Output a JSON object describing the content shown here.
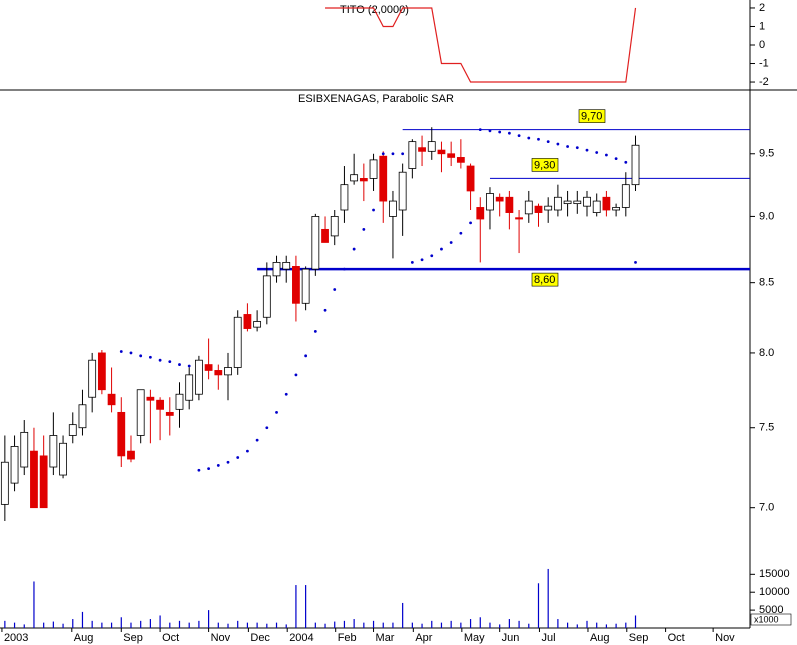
{
  "chart_data": [
    {
      "type": "line",
      "title": "TITO (2,0000)",
      "color": "#e02020",
      "values": [
        null,
        null,
        null,
        null,
        null,
        null,
        null,
        null,
        null,
        null,
        null,
        null,
        null,
        null,
        null,
        null,
        null,
        null,
        null,
        null,
        null,
        null,
        null,
        null,
        null,
        null,
        null,
        null,
        null,
        null,
        null,
        null,
        null,
        2,
        2,
        2,
        2,
        2,
        2,
        1,
        1,
        2,
        2,
        2,
        2,
        -1,
        -1,
        -1,
        -2,
        -2,
        -2,
        -2,
        -2,
        -2,
        -2,
        -2,
        -2,
        -2,
        -2,
        -2,
        -2,
        -2,
        -2,
        -2,
        -2,
        2
      ],
      "xlim": [
        -0.5,
        76.8
      ],
      "ylim": [
        -2.43,
        2.43
      ],
      "yticks": [
        2,
        1,
        0,
        -1,
        -2
      ]
    },
    {
      "type": "candlestick",
      "title": "ESIBXENAGAS, Parabolic SAR",
      "log_scale": true,
      "up_color": "#ffffff",
      "down_color": "#e00000",
      "open": [
        7.02,
        7.15,
        7.25,
        7.35,
        7.32,
        7.25,
        7.2,
        7.45,
        7.5,
        7.7,
        8.0,
        7.72,
        7.6,
        7.35,
        7.45,
        7.7,
        7.68,
        7.6,
        7.62,
        7.68,
        7.72,
        7.92,
        7.88,
        7.85,
        7.9,
        8.27,
        8.18,
        8.25,
        8.55,
        8.6,
        8.62,
        8.35,
        8.6,
        8.9,
        8.85,
        9.05,
        9.28,
        9.3,
        9.3,
        9.48,
        9.0,
        9.05,
        9.38,
        9.55,
        9.52,
        9.53,
        9.5,
        9.47,
        9.4,
        9.07,
        9.05,
        9.15,
        9.15,
        8.99,
        9.02,
        9.08,
        9.05,
        9.05,
        9.1,
        9.1,
        9.08,
        9.03,
        9.15,
        9.05,
        9.07,
        9.25
      ],
      "high": [
        7.45,
        7.45,
        7.55,
        7.5,
        7.45,
        7.6,
        7.45,
        7.6,
        7.75,
        8.0,
        8.02,
        7.9,
        7.7,
        7.45,
        7.75,
        7.75,
        7.7,
        7.7,
        7.8,
        7.9,
        7.98,
        8.1,
        7.92,
        8.0,
        8.3,
        8.35,
        8.3,
        8.65,
        8.7,
        8.7,
        8.7,
        8.62,
        9.02,
        9.0,
        9.05,
        9.4,
        9.5,
        9.42,
        9.5,
        9.52,
        9.2,
        9.42,
        9.62,
        9.65,
        9.72,
        9.6,
        9.6,
        9.62,
        9.42,
        9.15,
        9.23,
        9.18,
        9.2,
        9.05,
        9.2,
        9.1,
        9.15,
        9.25,
        9.2,
        9.2,
        9.2,
        9.18,
        9.2,
        9.1,
        9.35,
        9.65
      ],
      "low": [
        6.92,
        7.1,
        7.2,
        7.0,
        7.0,
        7.2,
        7.18,
        7.4,
        7.45,
        7.6,
        7.72,
        7.6,
        7.25,
        7.28,
        7.4,
        7.4,
        7.42,
        7.45,
        7.5,
        7.62,
        7.68,
        7.82,
        7.75,
        7.68,
        7.85,
        8.15,
        8.15,
        8.2,
        8.5,
        8.5,
        8.22,
        8.3,
        8.55,
        8.8,
        8.78,
        8.95,
        9.25,
        9.12,
        9.2,
        8.95,
        8.68,
        8.85,
        9.3,
        9.4,
        9.45,
        9.35,
        9.4,
        9.38,
        9.05,
        8.65,
        8.9,
        9.0,
        8.9,
        8.72,
        8.95,
        8.92,
        8.95,
        9.0,
        9.0,
        9.02,
        9.0,
        9.0,
        9.0,
        9.0,
        9.0,
        9.2
      ],
      "close": [
        7.28,
        7.38,
        7.47,
        7.0,
        7.0,
        7.45,
        7.4,
        7.52,
        7.65,
        7.95,
        7.75,
        7.65,
        7.32,
        7.3,
        7.75,
        7.68,
        7.62,
        7.58,
        7.72,
        7.85,
        7.95,
        7.88,
        7.85,
        7.9,
        8.25,
        8.17,
        8.22,
        8.55,
        8.65,
        8.65,
        8.35,
        8.6,
        9.0,
        8.8,
        9.0,
        9.25,
        9.33,
        9.28,
        9.45,
        9.12,
        9.12,
        9.35,
        9.6,
        9.52,
        9.6,
        9.5,
        9.47,
        9.43,
        9.2,
        8.98,
        9.18,
        9.12,
        9.03,
        8.98,
        9.12,
        9.03,
        9.08,
        9.15,
        9.12,
        9.12,
        9.15,
        9.12,
        9.05,
        9.07,
        9.25,
        9.57
      ],
      "sar": {
        "color": "#0000cc",
        "values": [
          null,
          null,
          null,
          null,
          null,
          null,
          null,
          null,
          null,
          null,
          null,
          null,
          8.01,
          8.0,
          7.98,
          7.97,
          7.95,
          7.94,
          7.92,
          7.91,
          7.23,
          7.24,
          7.26,
          7.28,
          7.31,
          7.35,
          7.42,
          7.5,
          7.6,
          7.72,
          7.85,
          7.98,
          8.15,
          8.3,
          8.45,
          8.6,
          8.75,
          8.9,
          9.05,
          9.5,
          9.5,
          9.5,
          8.65,
          8.67,
          8.7,
          8.75,
          8.8,
          8.87,
          8.95,
          9.7,
          9.69,
          9.68,
          9.67,
          9.65,
          9.63,
          9.62,
          9.6,
          9.58,
          9.56,
          9.55,
          9.53,
          9.51,
          9.49,
          9.46,
          9.43,
          8.65
        ]
      },
      "hlines": [
        {
          "value": 9.7,
          "label": "9,70",
          "from": 41,
          "width": 1
        },
        {
          "value": 9.3,
          "label": "9,30",
          "from": 50,
          "width": 1
        },
        {
          "value": 8.6,
          "label": "8,60",
          "from": 26,
          "width": 2.5
        }
      ],
      "hline_color": "#0000cc",
      "xlim": [
        -0.5,
        76.8
      ],
      "ylim": [
        6.72,
        10.02
      ],
      "yticks": [
        {
          "value": 7,
          "label": "7.0"
        },
        7.5,
        {
          "value": 8,
          "label": "8.0"
        },
        8.5,
        {
          "value": 9,
          "label": "9.0"
        },
        9.5
      ]
    },
    {
      "type": "bar",
      "color": "#0000cc",
      "unit_note": "x1000",
      "values": [
        2000,
        1500,
        1000,
        13000,
        1500,
        1800,
        1200,
        2500,
        4500,
        2000,
        1500,
        1500,
        3000,
        1500,
        2000,
        2500,
        3500,
        1500,
        2000,
        1500,
        2000,
        5000,
        1500,
        1200,
        2000,
        1500,
        1500,
        1200,
        1500,
        1000,
        12000,
        12000,
        1500,
        1200,
        1800,
        2000,
        2500,
        1500,
        2000,
        1500,
        1500,
        7000,
        1500,
        1200,
        2000,
        1500,
        2000,
        1500,
        2500,
        3000,
        1500,
        1000,
        2500,
        2000,
        1200,
        12500,
        16500,
        2500,
        1500,
        1000,
        2000,
        1500,
        1000,
        1200,
        1500,
        3500
      ],
      "xlim": [
        -0.5,
        76.8
      ],
      "ylim": [
        0,
        19000
      ],
      "yticks": [
        5000,
        10000,
        15000
      ],
      "xticks": [
        {
          "value": -0.3,
          "label": "2003"
        },
        {
          "value": 6.9,
          "label": "Aug"
        },
        {
          "value": 12,
          "label": "Sep"
        },
        {
          "value": 16,
          "label": "Oct"
        },
        {
          "value": 21,
          "label": "Nov"
        },
        {
          "value": 25.1,
          "label": "Dec"
        },
        {
          "value": 29.1,
          "label": "2004"
        },
        {
          "value": 34.1,
          "label": "Feb"
        },
        {
          "value": 38,
          "label": "Mar"
        },
        {
          "value": 42.1,
          "label": "Apr"
        },
        {
          "value": 47.1,
          "label": "May"
        },
        {
          "value": 51,
          "label": "Jun"
        },
        {
          "value": 55.1,
          "label": "Jul"
        },
        {
          "value": 60.1,
          "label": "Aug"
        },
        {
          "value": 64.1,
          "label": "Sep"
        },
        {
          "value": 68.1,
          "label": "Oct"
        },
        {
          "value": 73,
          "label": "Nov"
        }
      ]
    }
  ]
}
